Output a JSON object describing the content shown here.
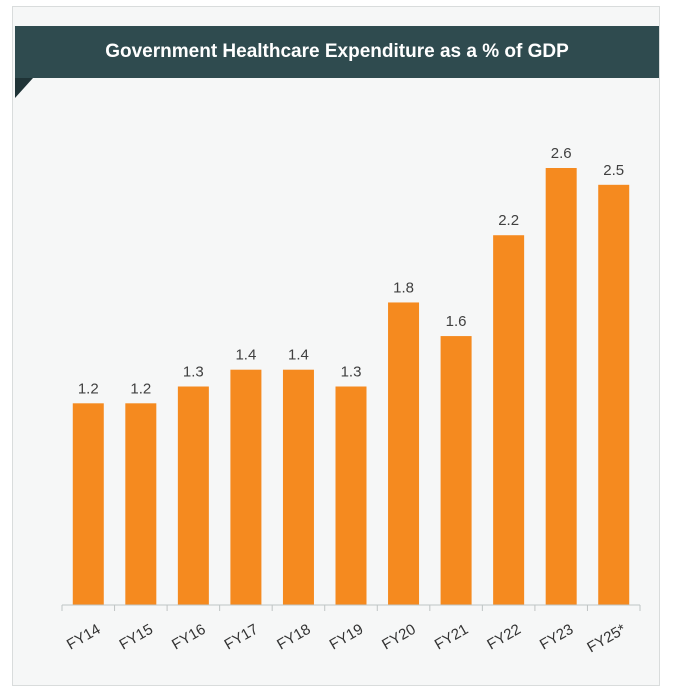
{
  "chart_data": {
    "type": "bar",
    "title": "Government Healthcare Expenditure as a % of GDP",
    "categories": [
      "FY14",
      "FY15",
      "FY16",
      "FY17",
      "FY18",
      "FY19",
      "FY20",
      "FY21",
      "FY22",
      "FY23",
      "FY25*"
    ],
    "values": [
      1.2,
      1.2,
      1.3,
      1.4,
      1.4,
      1.3,
      1.8,
      1.6,
      2.2,
      2.6,
      2.5
    ],
    "value_labels": [
      "1.2",
      "1.2",
      "1.3",
      "1.4",
      "1.4",
      "1.3",
      "1.8",
      "1.6",
      "2.2",
      "2.6",
      "2.5"
    ],
    "xlabel": "",
    "ylabel": "",
    "ylim": [
      0,
      2.6
    ],
    "grid": false,
    "legend": "none",
    "bar_color": "#f58a1f",
    "header_color": "#2f4b4f"
  }
}
